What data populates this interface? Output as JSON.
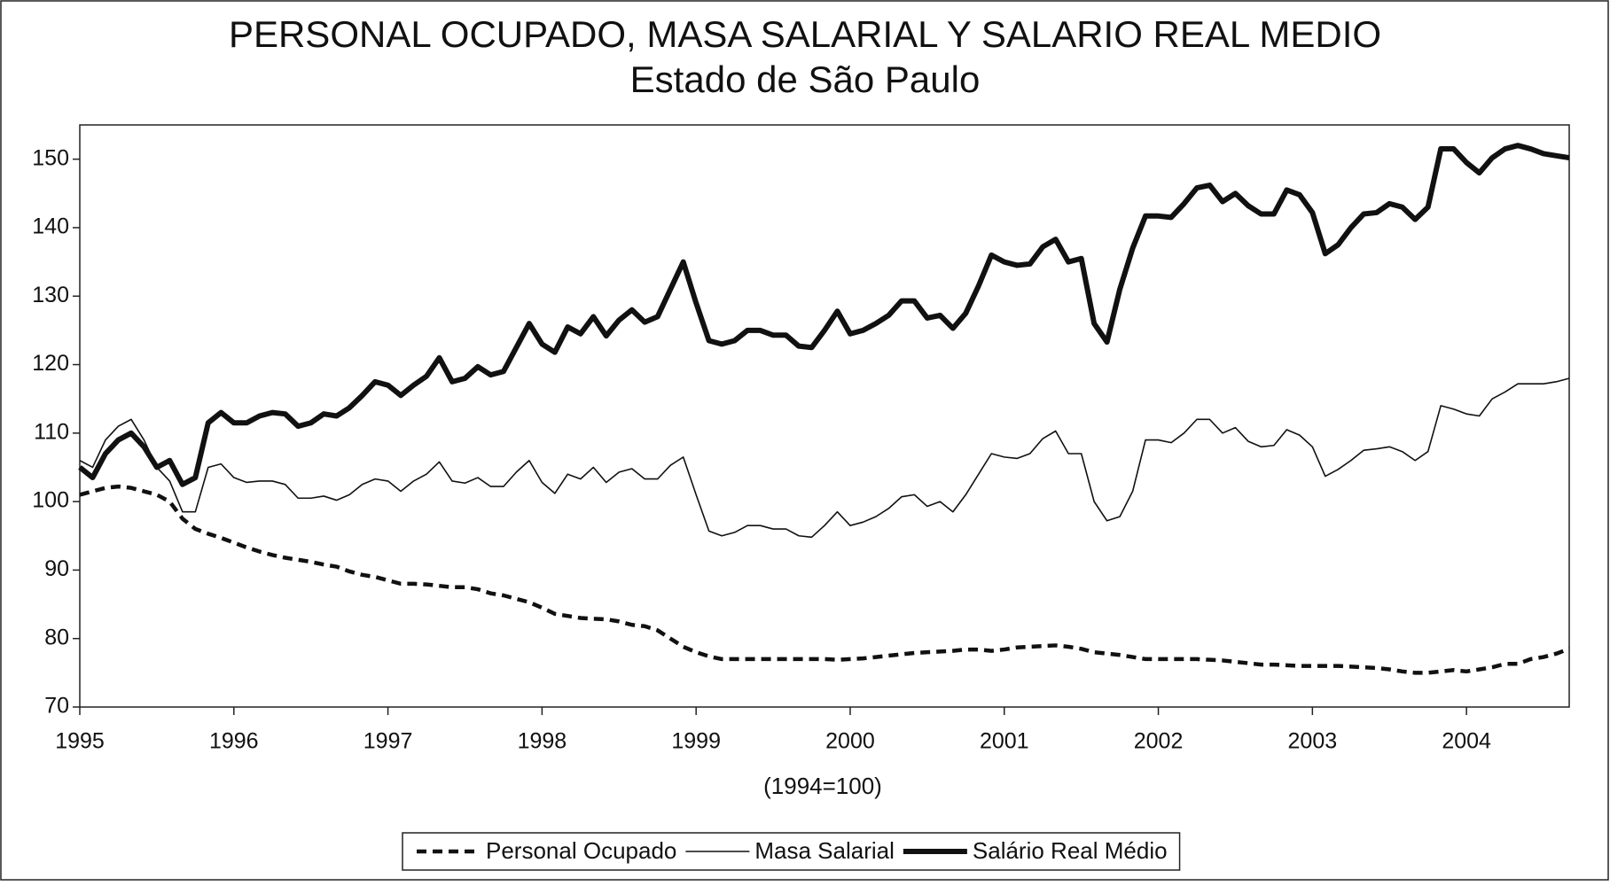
{
  "chart_data": {
    "type": "line",
    "title": "PERSONAL OCUPADO, MASA SALARIAL Y SALARIO REAL MEDIO",
    "subtitle": "Estado de São Paulo",
    "x_label": "(1994=100)",
    "categories": [
      "1995",
      null,
      null,
      null,
      null,
      null,
      null,
      null,
      null,
      null,
      null,
      null,
      "1996",
      null,
      null,
      null,
      null,
      null,
      null,
      null,
      null,
      null,
      null,
      null,
      "1997",
      null,
      null,
      null,
      null,
      null,
      null,
      null,
      null,
      null,
      null,
      null,
      "1998",
      null,
      null,
      null,
      null,
      null,
      null,
      null,
      null,
      null,
      null,
      null,
      "1999",
      null,
      null,
      null,
      null,
      null,
      null,
      null,
      null,
      null,
      null,
      null,
      "2000",
      null,
      null,
      null,
      null,
      null,
      null,
      null,
      null,
      null,
      null,
      null,
      "2001",
      null,
      null,
      null,
      null,
      null,
      null,
      null,
      null,
      null,
      null,
      null,
      "2002",
      null,
      null,
      null,
      null,
      null,
      null,
      null,
      null,
      null,
      null,
      null,
      "2003",
      null,
      null,
      null,
      null,
      null,
      null,
      null,
      null,
      null,
      null,
      null,
      "2004",
      null,
      null,
      null,
      null,
      null,
      null,
      null,
      null
    ],
    "series": [
      {
        "name": "Personal Ocupado",
        "color": "#111111",
        "style": "dashed",
        "values": [
          101,
          101.5,
          102,
          102.2,
          102,
          101.5,
          101,
          100,
          97.5,
          96,
          95.3,
          94.7,
          94,
          93.3,
          92.7,
          92.2,
          91.8,
          91.5,
          91.2,
          90.8,
          90.5,
          89.8,
          89.3,
          89,
          88.5,
          88,
          88,
          87.9,
          87.7,
          87.5,
          87.5,
          87.2,
          86.6,
          86.3,
          85.8,
          85.3,
          84.5,
          83.6,
          83.3,
          83,
          82.9,
          82.8,
          82.5,
          82,
          81.8,
          81.2,
          80,
          78.8,
          78,
          77.4,
          77,
          77,
          77,
          77,
          77,
          77,
          77,
          77,
          77,
          76.9,
          77,
          77.1,
          77.3,
          77.5,
          77.7,
          77.9,
          78,
          78.1,
          78.2,
          78.4,
          78.4,
          78.2,
          78.4,
          78.7,
          78.8,
          78.9,
          79,
          78.8,
          78.5,
          78,
          77.8,
          77.6,
          77.3,
          77,
          77,
          77,
          77,
          77,
          76.9,
          76.8,
          76.6,
          76.4,
          76.2,
          76.2,
          76.1,
          76,
          76,
          76,
          76,
          75.9,
          75.8,
          75.7,
          75.5,
          75.2,
          75,
          75,
          75.2,
          75.4,
          75.2,
          75.5,
          75.8,
          76.3,
          76.3,
          77,
          77.3,
          77.8,
          78.5
        ]
      },
      {
        "name": "Masa Salarial",
        "color": "#111111",
        "style": "thin",
        "values": [
          106,
          105,
          109,
          111,
          112,
          109,
          105,
          103,
          98.5,
          98.5,
          105,
          105.5,
          103.5,
          102.8,
          103,
          103,
          102.5,
          100.5,
          100.5,
          100.8,
          100.2,
          101,
          102.5,
          103.3,
          103,
          101.5,
          103,
          104,
          105.8,
          103,
          102.7,
          103.5,
          102.2,
          102.2,
          104.3,
          106,
          102.8,
          101.2,
          104,
          103.3,
          105,
          102.8,
          104.3,
          104.8,
          103.3,
          103.3,
          105.3,
          106.5,
          101,
          95.7,
          95,
          95.5,
          96.5,
          96.5,
          96,
          96,
          95,
          94.8,
          96.5,
          98.5,
          96.5,
          97,
          97.8,
          99,
          100.7,
          101,
          99.3,
          100,
          98.5,
          101,
          104,
          107,
          106.5,
          106.3,
          107,
          109.2,
          110.3,
          107,
          107,
          100,
          97.2,
          97.8,
          101.5,
          109,
          109,
          108.6,
          110,
          112,
          112,
          110,
          110.8,
          108.8,
          108,
          108.2,
          110.5,
          109.7,
          108,
          103.7,
          104.7,
          106,
          107.5,
          107.7,
          108,
          107.3,
          106,
          107.3,
          114,
          113.5,
          112.8,
          112.5,
          115,
          116,
          117.2,
          117.2,
          117.2,
          117.5,
          118
        ]
      },
      {
        "name": "Salário Real Médio",
        "color": "#111111",
        "style": "thick",
        "values": [
          105,
          103.5,
          107,
          109,
          110,
          108,
          105,
          106,
          102.5,
          103.5,
          111.5,
          113,
          111.5,
          111.5,
          112.5,
          113,
          112.8,
          111,
          111.5,
          112.8,
          112.5,
          113.7,
          115.5,
          117.5,
          117,
          115.5,
          117,
          118.3,
          121,
          117.5,
          118,
          119.7,
          118.5,
          119,
          122.5,
          126,
          123,
          121.8,
          125.5,
          124.5,
          127,
          124.2,
          126.5,
          128,
          126.2,
          127,
          131,
          135,
          129,
          123.5,
          123,
          123.5,
          125,
          125,
          124.3,
          124.3,
          122.7,
          122.5,
          125,
          127.8,
          124.5,
          125,
          126,
          127.2,
          129.3,
          129.3,
          126.8,
          127.2,
          125.3,
          127.5,
          131.5,
          136,
          135,
          134.5,
          134.7,
          137.2,
          138.3,
          135,
          135.5,
          126,
          123.3,
          131,
          137,
          141.7,
          141.7,
          141.5,
          143.5,
          145.8,
          146.2,
          143.8,
          145,
          143.2,
          142,
          142,
          145.5,
          144.8,
          142.2,
          136.2,
          137.5,
          140,
          142,
          142.2,
          143.5,
          143,
          141.2,
          143,
          151.5,
          151.5,
          149.5,
          148,
          150.2,
          151.5,
          152,
          151.5,
          150.8,
          150.5,
          150.2
        ]
      }
    ],
    "ylim": [
      70,
      155
    ],
    "yticks": [
      70,
      80,
      90,
      100,
      110,
      120,
      130,
      140,
      150
    ],
    "grid": false,
    "legend": "bottom"
  }
}
